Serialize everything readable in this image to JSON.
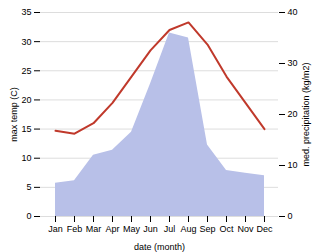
{
  "chart_data": {
    "type": "line",
    "xlabel": "date (month)",
    "ylabel": "max temp (C)",
    "y2label": "med. precipitation (kg/m2)",
    "categories": [
      "Jan",
      "Feb",
      "Mar",
      "Apr",
      "May",
      "Jun",
      "Jul",
      "Aug",
      "Sep",
      "Oct",
      "Nov",
      "Dec"
    ],
    "series": [
      {
        "type": "area",
        "color": "#b8c0e8",
        "axis": "y2",
        "values": [
          6.5,
          7.0,
          12.0,
          13.0,
          16.5,
          26.0,
          36.0,
          35.0,
          14.0,
          9.0,
          8.5,
          8.0
        ]
      },
      {
        "type": "line",
        "color": "#c0392b",
        "values": [
          14.7,
          14.2,
          16.0,
          19.5,
          24.0,
          28.5,
          32.0,
          33.3,
          29.5,
          24.0,
          19.5,
          15.0
        ]
      }
    ],
    "ylim": [
      0,
      35
    ],
    "yticks": [
      0,
      5,
      10,
      15,
      20,
      25,
      30,
      35
    ],
    "y2lim": [
      0,
      40
    ],
    "y2ticks": [
      0,
      10,
      20,
      30,
      40
    ],
    "grid": true
  }
}
